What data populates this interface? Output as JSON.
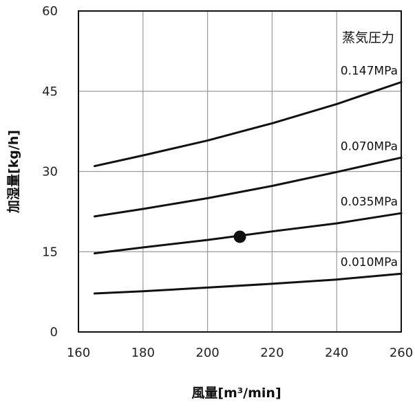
{
  "chart_data": {
    "type": "line",
    "title": "",
    "xlabel": "風量[m³/min]",
    "ylabel": "加湿量[kg/h]",
    "xlim": [
      160,
      260
    ],
    "ylim": [
      0,
      60
    ],
    "xticks": [
      160,
      180,
      200,
      220,
      240,
      260
    ],
    "yticks": [
      0,
      15,
      30,
      45,
      60
    ],
    "grid": true,
    "legend_title": "蒸気圧力",
    "series": [
      {
        "name": "0.147MPa",
        "x": [
          165,
          180,
          200,
          220,
          240,
          260
        ],
        "y": [
          31.0,
          33.0,
          35.8,
          39.0,
          42.6,
          46.7
        ]
      },
      {
        "name": "0.070MPa",
        "x": [
          165,
          180,
          200,
          220,
          240,
          260
        ],
        "y": [
          21.6,
          23.0,
          25.0,
          27.3,
          29.9,
          32.6
        ]
      },
      {
        "name": "0.035MPa",
        "x": [
          165,
          180,
          200,
          220,
          240,
          260
        ],
        "y": [
          14.7,
          15.8,
          17.2,
          18.8,
          20.3,
          22.2
        ]
      },
      {
        "name": "0.010MPa",
        "x": [
          165,
          180,
          200,
          220,
          240,
          260
        ],
        "y": [
          7.2,
          7.6,
          8.3,
          9.0,
          9.8,
          10.9
        ]
      }
    ],
    "marker": {
      "x": 210,
      "y": 17.8
    }
  }
}
